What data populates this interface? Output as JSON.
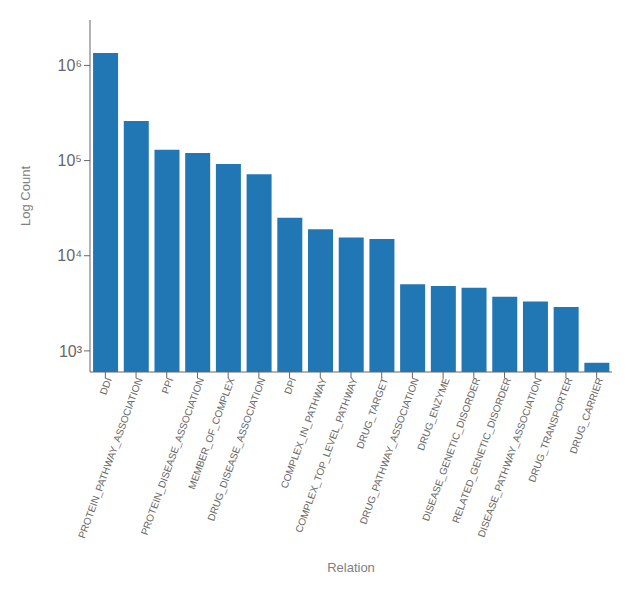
{
  "chart_data": {
    "type": "bar",
    "categories": [
      "DDI",
      "PROTEIN_PATHWAY_ASSOCIATION",
      "PPI",
      "PROTEIN_DISEASE_ASSOCIATION",
      "MEMBER_OF_COMPLEX",
      "DRUG_DISEASE_ASSOCIATION",
      "DPI",
      "COMPLEX_IN_PATHWAY",
      "COMPLEX_TOP_LEVEL_PATHWAY",
      "DRUG_TARGET",
      "DRUG_PATHWAY_ASSOCIATION",
      "DRUG_ENZYME",
      "DISEASE_GENETIC_DISORDER",
      "RELATED_GENETIC_DISORDER",
      "DISEASE_PATHWAY_ASSOCIATION",
      "DRUG_TRANSPORTER",
      "DRUG_CARRIER"
    ],
    "values": [
      1350000,
      260000,
      130000,
      120000,
      92000,
      72000,
      25000,
      19000,
      15500,
      15000,
      5000,
      4800,
      4600,
      3700,
      3300,
      2900,
      750
    ],
    "color": "#2077b4",
    "xlabel": "Relation",
    "ylabel": "Log Count",
    "ylim": [
      600,
      3000000
    ],
    "yticks": [
      {
        "value": 1000,
        "label": "10³"
      },
      {
        "value": 10000,
        "label": "10⁴"
      },
      {
        "value": 100000,
        "label": "10⁵"
      },
      {
        "value": 1000000,
        "label": "10⁶"
      }
    ],
    "log": "y",
    "grid": false
  }
}
